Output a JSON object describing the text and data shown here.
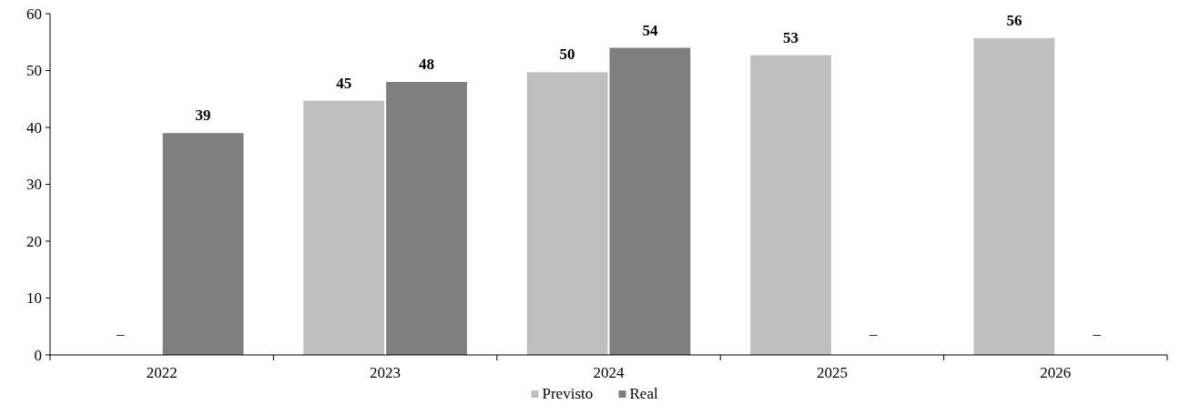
{
  "chart_data": {
    "type": "bar",
    "categories": [
      "2022",
      "2023",
      "2024",
      "2025",
      "2026"
    ],
    "series": [
      {
        "name": "Previsto",
        "color": "#bfbfbf",
        "values": [
          null,
          44.7,
          49.7,
          52.7,
          55.7
        ],
        "value_labels": [
          "–",
          "45",
          "50",
          "53",
          "56"
        ]
      },
      {
        "name": "Real",
        "color": "#7f7f7f",
        "values": [
          39,
          48,
          54,
          null,
          null
        ],
        "value_labels": [
          "39",
          "48",
          "54",
          "–",
          "–"
        ]
      }
    ],
    "ylim": [
      0,
      60
    ],
    "yticks": [
      0,
      10,
      20,
      30,
      40,
      50,
      60
    ],
    "grid": false,
    "legend": "bottom"
  }
}
